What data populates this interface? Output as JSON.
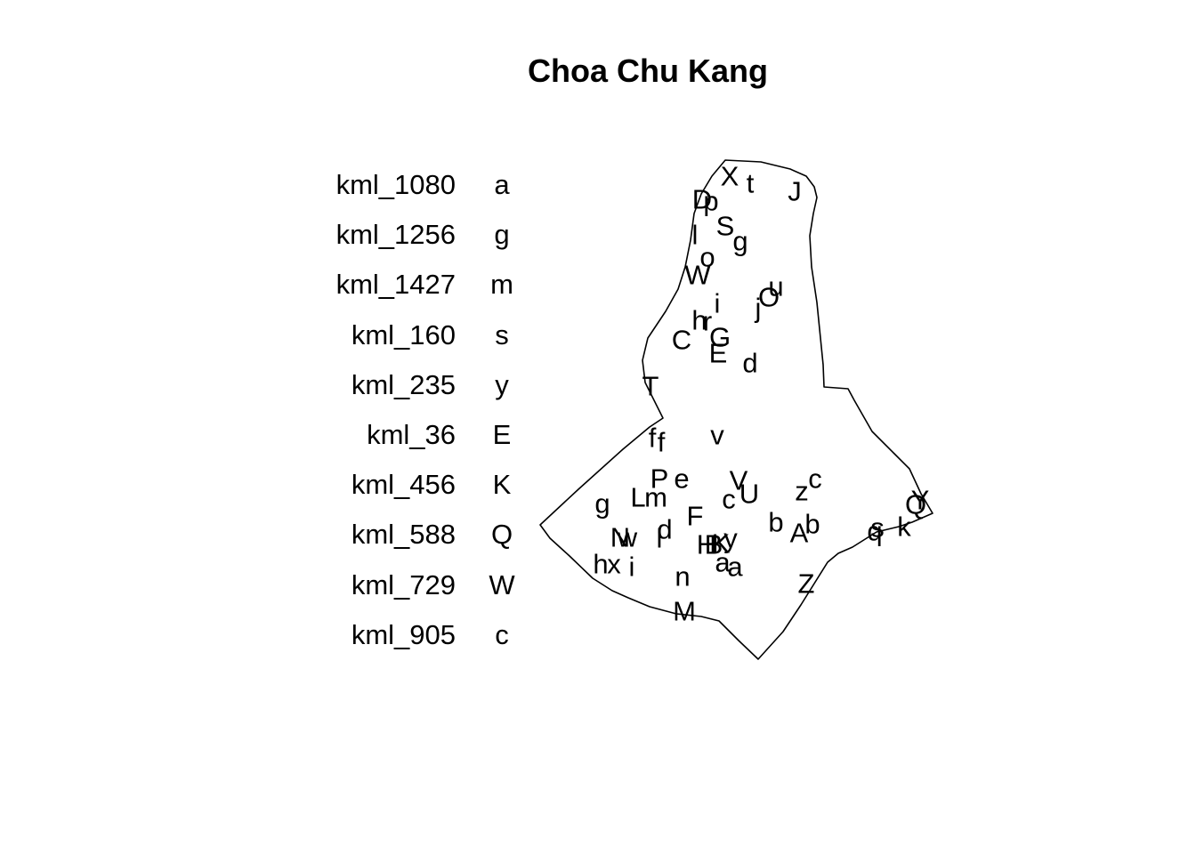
{
  "title": "Choa Chu Kang",
  "legend": [
    {
      "name": "kml_1080",
      "code": "a"
    },
    {
      "name": "kml_1256",
      "code": "g"
    },
    {
      "name": "kml_1427",
      "code": "m"
    },
    {
      "name": "kml_160",
      "code": "s"
    },
    {
      "name": "kml_235",
      "code": "y"
    },
    {
      "name": "kml_36",
      "code": "E"
    },
    {
      "name": "kml_456",
      "code": "K"
    },
    {
      "name": "kml_588",
      "code": "Q"
    },
    {
      "name": "kml_729",
      "code": "W"
    },
    {
      "name": "kml_905",
      "code": "c"
    }
  ],
  "map_labels": [
    "X",
    "t",
    "J",
    "D",
    "p",
    "S",
    "g",
    "l",
    "o",
    "W",
    "u",
    "i",
    "j",
    "O",
    "h",
    "r",
    "C",
    "G",
    "E",
    "d",
    "T",
    "f",
    "f",
    "v",
    "P",
    "e",
    "V",
    "c",
    "z",
    "g",
    "L",
    "m",
    "c",
    "U",
    "F",
    "b",
    "A",
    "b",
    "Y",
    "s",
    "Q",
    "k",
    "N",
    "w",
    "d",
    "l",
    "H",
    "B",
    "K",
    "y",
    "q",
    "h",
    "x",
    "i",
    "a",
    "a",
    "n",
    "Z",
    "M"
  ],
  "colors": {
    "background": "#ffffff",
    "ink": "#000000"
  }
}
